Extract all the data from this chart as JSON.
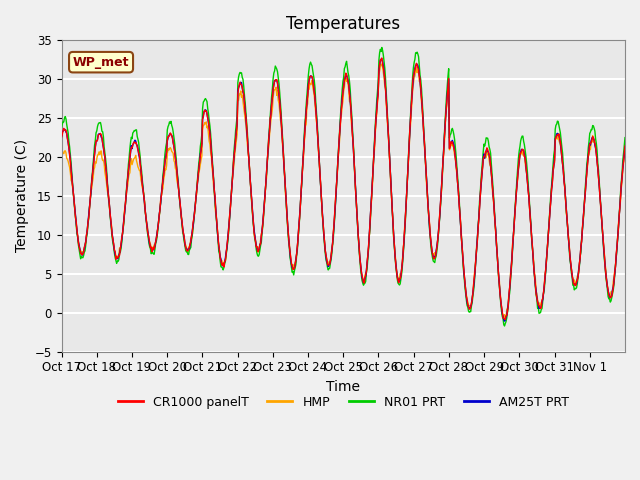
{
  "title": "Temperatures",
  "xlabel": "Time",
  "ylabel": "Temperature (C)",
  "ylim": [
    -5,
    35
  ],
  "yticks": [
    -5,
    0,
    5,
    10,
    15,
    20,
    25,
    30,
    35
  ],
  "x_tick_labels": [
    "Oct 17",
    "Oct 18",
    "Oct 19",
    "Oct 20",
    "Oct 21",
    "Oct 22",
    "Oct 23",
    "Oct 24",
    "Oct 25",
    "Oct 26",
    "Oct 27",
    "Oct 28",
    "Oct 29",
    "Oct 30",
    "Oct 31",
    "Nov 1"
  ],
  "station_label": "WP_met",
  "colors": {
    "CR1000": "#ff0000",
    "HMP": "#ffa500",
    "NR01": "#00cc00",
    "AM25T": "#0000cc"
  },
  "legend_labels": [
    "CR1000 panelT",
    "HMP",
    "NR01 PRT",
    "AM25T PRT"
  ],
  "background_color": "#e8e8e8",
  "grid_color": "#ffffff",
  "title_fontsize": 12,
  "axis_fontsize": 10,
  "tick_fontsize": 8.5
}
